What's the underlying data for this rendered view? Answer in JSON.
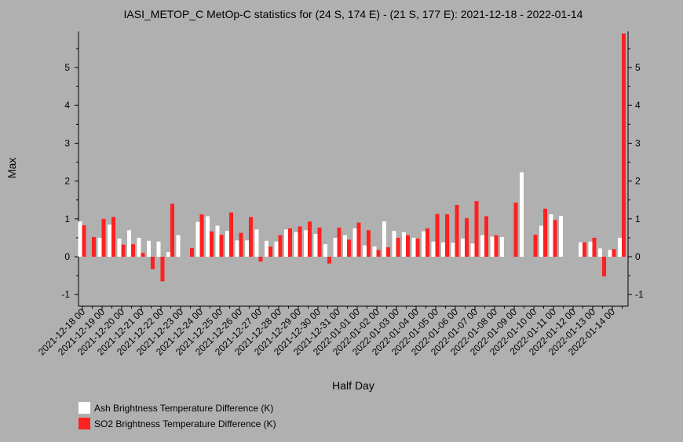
{
  "chart_data": {
    "type": "bar",
    "title": "IASI_METOP_C MetOp-C statistics for (24 S, 174 E) - (21 S, 177 E): 2021-12-18 - 2022-01-14",
    "xlabel": "Half Day",
    "ylabel": "Max",
    "ylim": [
      -1.3,
      5.9
    ],
    "yticks": [
      -1,
      0,
      1,
      2,
      3,
      4,
      5
    ],
    "x_tick_labels": [
      "2021-12-18 00",
      "2021-12-19 00",
      "2021-12-20 00",
      "2021-12-21 00",
      "2021-12-22 00",
      "2021-12-23 00",
      "2021-12-24 00",
      "2021-12-25 00",
      "2021-12-26 00",
      "2021-12-27 00",
      "2021-12-28 00",
      "2021-12-29 00",
      "2021-12-30 00",
      "2021-12-31 00",
      "2022-01-01 00",
      "2022-01-02 00",
      "2022-01-03 00",
      "2022-01-04 00",
      "2022-01-05 00",
      "2022-01-06 00",
      "2022-01-07 00",
      "2022-01-08 00",
      "2022-01-09 00",
      "2022-01-10 00",
      "2022-01-11 00",
      "2022-01-12 00",
      "2022-01-13 00",
      "2022-01-14 00"
    ],
    "legend_position": "bottom-left",
    "series": [
      {
        "name": "Ash Brightness Temperature Difference (K)",
        "color": "#ffffff",
        "values": [
          0.93,
          null,
          0.5,
          0.85,
          0.48,
          0.7,
          0.5,
          0.42,
          0.4,
          0.12,
          0.57,
          null,
          0.92,
          1.07,
          0.82,
          0.68,
          0.43,
          0.43,
          0.72,
          0.42,
          0.4,
          0.72,
          0.65,
          0.7,
          0.6,
          0.33,
          0.5,
          0.57,
          0.75,
          0.3,
          0.27,
          0.93,
          0.68,
          0.65,
          0.5,
          0.67,
          0.4,
          0.38,
          0.37,
          0.48,
          0.35,
          0.57,
          0.53,
          0.52,
          null,
          2.23,
          null,
          0.82,
          1.12,
          1.08,
          null,
          0.38,
          0.4,
          0.22,
          0.18,
          0.5
        ]
      },
      {
        "name": "SO2 Brightness Temperature Difference (K)",
        "color": "#ff2020",
        "values": [
          0.83,
          0.52,
          1.0,
          1.05,
          0.32,
          0.33,
          0.1,
          -0.33,
          -0.65,
          1.4,
          null,
          0.23,
          1.12,
          0.67,
          0.58,
          1.17,
          0.63,
          1.05,
          -0.13,
          0.27,
          0.57,
          0.75,
          0.8,
          0.93,
          0.77,
          -0.18,
          0.77,
          0.45,
          0.9,
          0.7,
          0.18,
          0.25,
          0.5,
          0.57,
          0.48,
          0.75,
          1.13,
          1.12,
          1.37,
          1.02,
          1.47,
          1.07,
          0.57,
          null,
          1.43,
          null,
          0.58,
          1.27,
          0.97,
          null,
          null,
          0.38,
          0.5,
          -0.52,
          0.2,
          5.9
        ]
      }
    ]
  }
}
